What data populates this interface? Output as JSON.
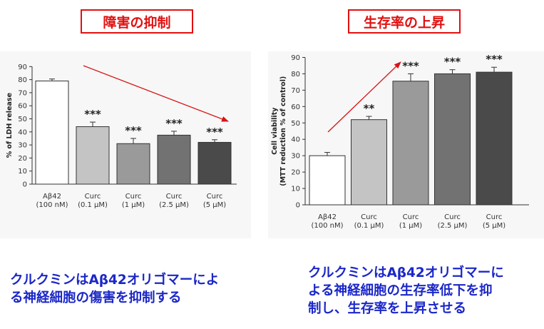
{
  "titles": {
    "left": "障害の抑制",
    "right": "生存率の上昇"
  },
  "captions": {
    "left": [
      "クルクミンはAβ42オリゴマーによ",
      "る神経細胞の傷害を抑制する"
    ],
    "right": [
      "クルクミンはAβ42オリゴマーに",
      "よる神経細胞の生存率低下を抑",
      "制し、生存率を上昇させる"
    ]
  },
  "colors": {
    "title": "#e01010",
    "caption": "#1b27c8",
    "arrow": "#d81414"
  },
  "chart_data": [
    {
      "type": "bar",
      "ylabel": "% of LDH release",
      "ylim": [
        0,
        90
      ],
      "yticks": [
        0,
        10,
        20,
        30,
        40,
        50,
        60,
        70,
        80,
        90
      ],
      "categories": [
        [
          "Aβ42",
          "(100 nM)"
        ],
        [
          "Curc",
          "(0.1 μM)"
        ],
        [
          "Curc",
          "(1 μM)"
        ],
        [
          "Curc",
          "(2.5 μM)"
        ],
        [
          "Curc",
          "(5 μM)"
        ]
      ],
      "values": [
        79,
        44,
        31,
        37.5,
        32
      ],
      "errors": [
        1.5,
        3.5,
        4,
        3,
        2
      ],
      "significance": [
        "",
        "***",
        "***",
        "***",
        "***"
      ],
      "bar_colors": [
        "#ffffff",
        "#c4c4c4",
        "#9a9a9a",
        "#727272",
        "#4a4a4a"
      ],
      "trend_arrow": "down"
    },
    {
      "type": "bar",
      "ylabel": [
        "Cell viability",
        "(MTT reduction % of control)"
      ],
      "ylim": [
        0,
        90
      ],
      "yticks": [
        0,
        10,
        20,
        30,
        40,
        50,
        60,
        70,
        80,
        90
      ],
      "categories": [
        [
          "Aβ42",
          "(100 nM)"
        ],
        [
          "Curc",
          "(0.1 μM)"
        ],
        [
          "Curc",
          "(1 μM)"
        ],
        [
          "Curc",
          "(2.5 μM)"
        ],
        [
          "Curc",
          "(5 μM)"
        ]
      ],
      "values": [
        30,
        52,
        75.5,
        80,
        81
      ],
      "errors": [
        2,
        2,
        4.5,
        2.5,
        3
      ],
      "significance": [
        "",
        "**",
        "***",
        "***",
        "***"
      ],
      "bar_colors": [
        "#ffffff",
        "#c4c4c4",
        "#9a9a9a",
        "#727272",
        "#4a4a4a"
      ],
      "trend_arrow": "up"
    }
  ]
}
